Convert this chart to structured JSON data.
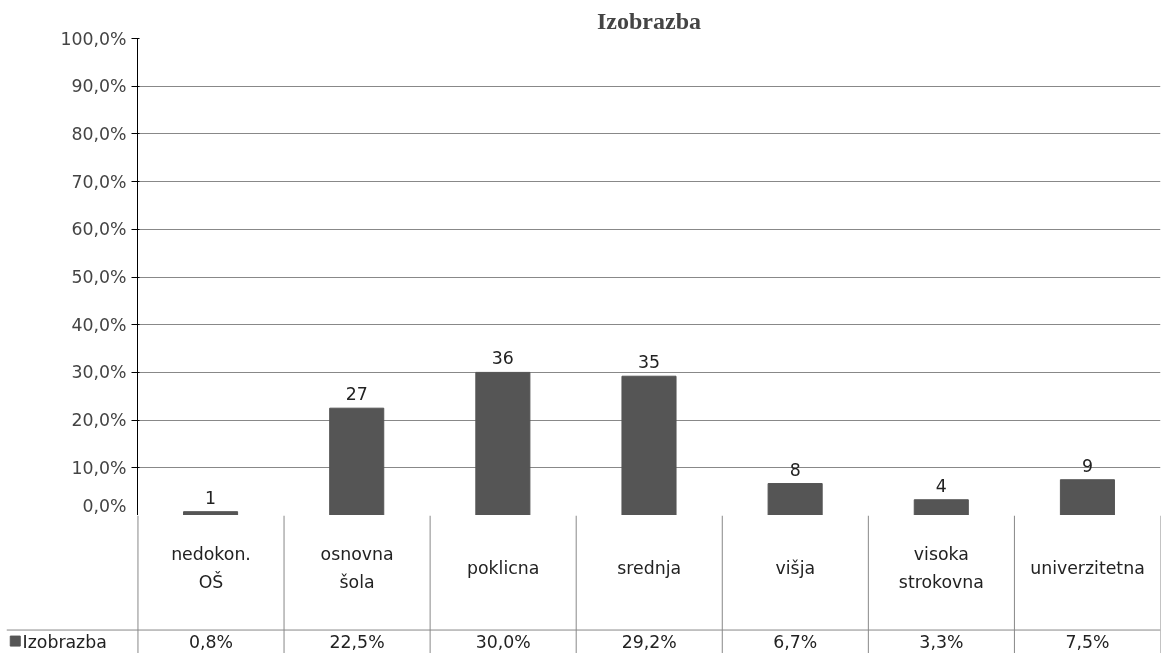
{
  "chart_data": {
    "type": "bar",
    "title": "Izobrazba",
    "categories": [
      "nedokon. OŠ",
      "osnovna šola",
      "poklicna",
      "srednja",
      "višja",
      "visoka strokovna",
      "univerzitetna"
    ],
    "series": [
      {
        "name": "Izobrazba",
        "color": "#555555",
        "values": [
          0.8,
          22.5,
          30.0,
          29.2,
          6.7,
          3.3,
          7.5
        ],
        "value_labels": [
          "0,8%",
          "22,5%",
          "30,0%",
          "29,2%",
          "6,7%",
          "3,3%",
          "7,5%"
        ]
      }
    ],
    "annotations": [
      "1",
      "27",
      "36",
      "35",
      "8",
      "4",
      "9"
    ],
    "ylim": [
      0,
      100
    ],
    "yticks": [
      {
        "value": 0,
        "label": "0,0%"
      },
      {
        "value": 10,
        "label": "10,0%"
      },
      {
        "value": 20,
        "label": "20,0%"
      },
      {
        "value": 30,
        "label": "30,0%"
      },
      {
        "value": 40,
        "label": "40,0%"
      },
      {
        "value": 50,
        "label": "50,0%"
      },
      {
        "value": 60,
        "label": "60,0%"
      },
      {
        "value": 70,
        "label": "70,0%"
      },
      {
        "value": 80,
        "label": "80,0%"
      },
      {
        "value": 90,
        "label": "90,0%"
      },
      {
        "value": 100,
        "label": "100,0%"
      }
    ],
    "grid": "y",
    "legend": "bottom left"
  }
}
